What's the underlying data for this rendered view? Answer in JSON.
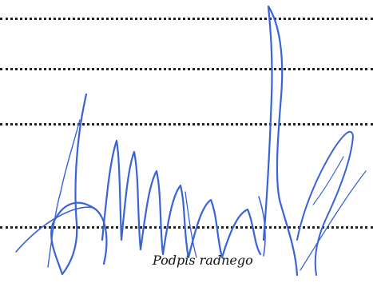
{
  "form": {
    "signature_caption": "Podpis radnego"
  },
  "signature": {
    "kind": "handwritten-signature",
    "ink_color": "#3a63d6"
  }
}
